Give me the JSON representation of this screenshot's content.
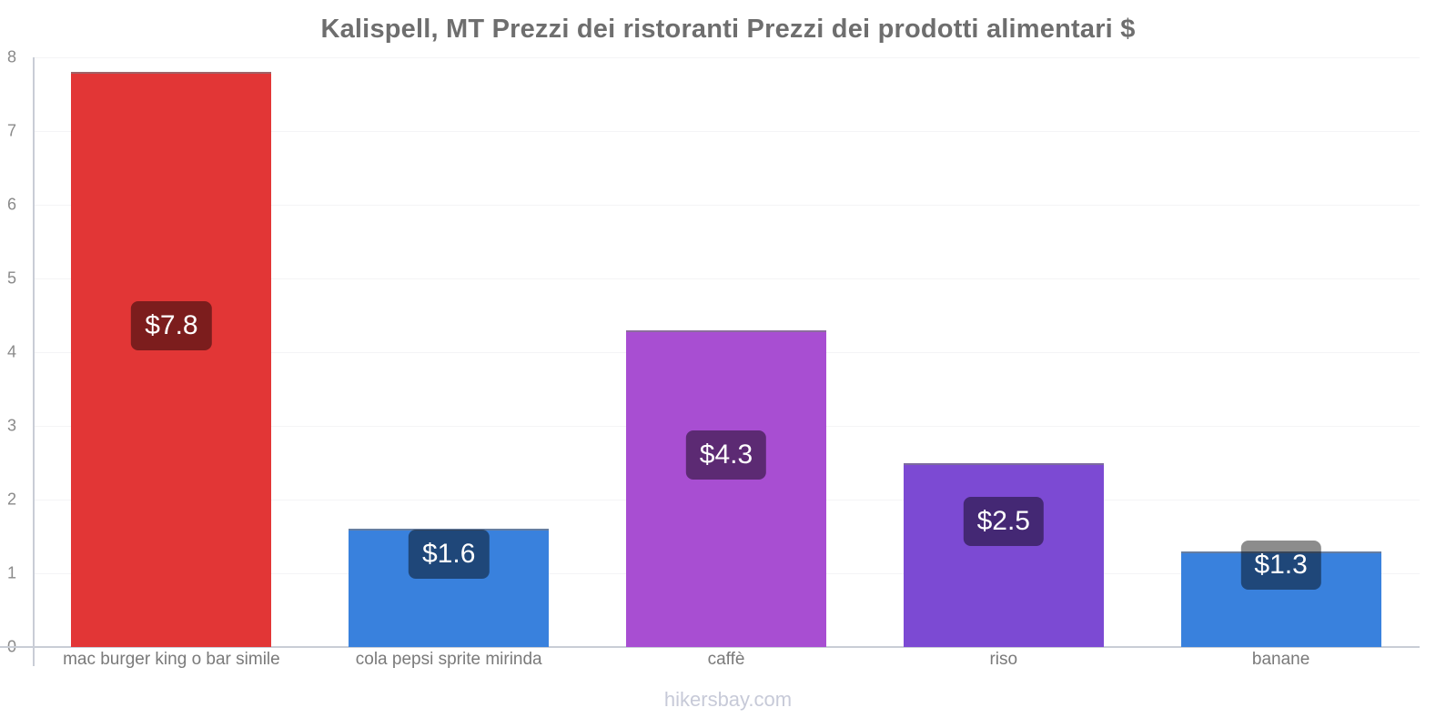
{
  "title": "Kalispell, MT Prezzi dei ristoranti Prezzi dei prodotti alimentari $",
  "footer": "hikersbay.com",
  "chart_data": {
    "type": "bar",
    "title": "Kalispell, MT Prezzi dei ristoranti Prezzi dei prodotti alimentari $",
    "categories": [
      "mac burger king o bar simile",
      "cola pepsi sprite mirinda",
      "caffè",
      "riso",
      "banane"
    ],
    "values": [
      7.8,
      1.6,
      4.3,
      2.5,
      1.3
    ],
    "value_labels": [
      "$7.8",
      "$1.6",
      "$4.3",
      "$2.5",
      "$1.3"
    ],
    "bar_colors": [
      "#e23636",
      "#3981dd",
      "#a84ed2",
      "#7c4ad3",
      "#3981dd"
    ],
    "badge_overlay_color": "rgba(0,0,0,0.45)",
    "currency": "$",
    "xlabel": "",
    "ylabel": "",
    "ylim": [
      0,
      8
    ],
    "yticks": [
      0,
      1,
      2,
      3,
      4,
      5,
      6,
      7,
      8
    ],
    "grid": true,
    "legend": "none",
    "watermark": "hikersbay.com"
  },
  "colors": {
    "title_text": "#6e6e6e",
    "axis_line": "#c9cdd6",
    "tick_text": "#8a8a8a",
    "category_text": "#7a7a7a",
    "gridline": "#f4f4f6",
    "watermark_text": "#c7cad8"
  }
}
